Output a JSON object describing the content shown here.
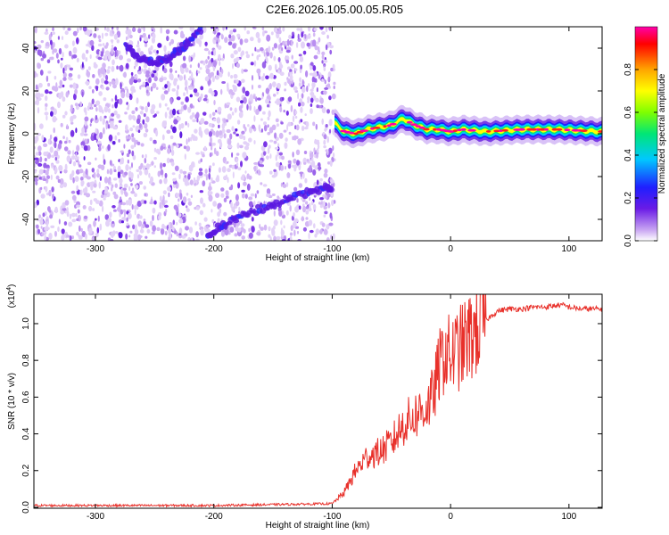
{
  "page": {
    "title": "C2E6.2026.105.00.05.R05"
  },
  "chart_data": [
    {
      "type": "heatmap",
      "xlabel": "Height of straight line (km)",
      "ylabel": "Frequency (Hz)",
      "xlim": [
        -352,
        128
      ],
      "ylim": [
        -50,
        50
      ],
      "xticks": [
        -300,
        -200,
        -100,
        0,
        100
      ],
      "yticks": [
        -40,
        -20,
        0,
        20,
        40
      ],
      "colorbar": {
        "label": "Normalized spectral amplitude",
        "range": [
          0,
          1
        ],
        "ticks": [
          0.0,
          0.2,
          0.4,
          0.6,
          0.8
        ],
        "colormap": [
          "#ffffff",
          "#c9a6f2",
          "#6a1be6",
          "#1f1fff",
          "#00c8ff",
          "#00e676",
          "#7fff00",
          "#ffff00",
          "#ffa500",
          "#ff0000",
          "#ff00aa"
        ]
      },
      "features": {
        "noise_region_x": [
          -352,
          -98
        ],
        "signal_track_x": [
          -98,
          128
        ],
        "signal_track_freq": [
          [
            -98,
            5
          ],
          [
            -90,
            1
          ],
          [
            -80,
            0
          ],
          [
            -70,
            2
          ],
          [
            -60,
            3
          ],
          [
            -50,
            4
          ],
          [
            -40,
            7
          ],
          [
            -30,
            4
          ],
          [
            -20,
            2
          ],
          [
            -10,
            2
          ],
          [
            0,
            1
          ],
          [
            10,
            2
          ],
          [
            30,
            1
          ],
          [
            60,
            2
          ],
          [
            90,
            2
          ],
          [
            128,
            1
          ]
        ],
        "mirror_traces": [
          {
            "x": [
              -275,
              -262,
              -250,
              -240,
              -230,
              -220,
              -210
            ],
            "y": [
              41,
              35,
              33,
              35,
              39,
              43,
              49
            ]
          },
          {
            "x": [
              -205,
              -190,
              -170,
              -150,
              -130,
              -110,
              -100
            ],
            "y": [
              -47,
              -42,
              -37,
              -33,
              -29,
              -26,
              -25
            ]
          }
        ]
      }
    },
    {
      "type": "line",
      "xlabel": "Height of straight line (km)",
      "ylabel": "SNR (10 * v/v)",
      "y_multiplier_label": "(x10",
      "y_multiplier_exp": "4",
      "xlim": [
        -352,
        128
      ],
      "ylim": [
        -0.005,
        1.16
      ],
      "xticks": [
        -300,
        -200,
        -100,
        0,
        100
      ],
      "yticks": [
        0.0,
        0.2,
        0.4,
        0.6,
        0.8,
        1.0
      ],
      "series": [
        {
          "color": "#e8302a",
          "x": [
            -352,
            -300,
            -250,
            -200,
            -150,
            -100,
            -90,
            -80,
            -70,
            -60,
            -50,
            -40,
            -30,
            -20,
            -15,
            -10,
            -5,
            0,
            10,
            20,
            30,
            40,
            50,
            60,
            70,
            80,
            90,
            95,
            100,
            110,
            128
          ],
          "y": [
            0.01,
            0.01,
            0.01,
            0.01,
            0.015,
            0.02,
            0.08,
            0.2,
            0.28,
            0.3,
            0.35,
            0.45,
            0.5,
            0.55,
            0.6,
            0.75,
            0.85,
            0.82,
            0.88,
            0.95,
            1.02,
            1.07,
            1.08,
            1.08,
            1.09,
            1.09,
            1.1,
            1.1,
            1.09,
            1.08,
            1.08
          ]
        }
      ]
    }
  ]
}
